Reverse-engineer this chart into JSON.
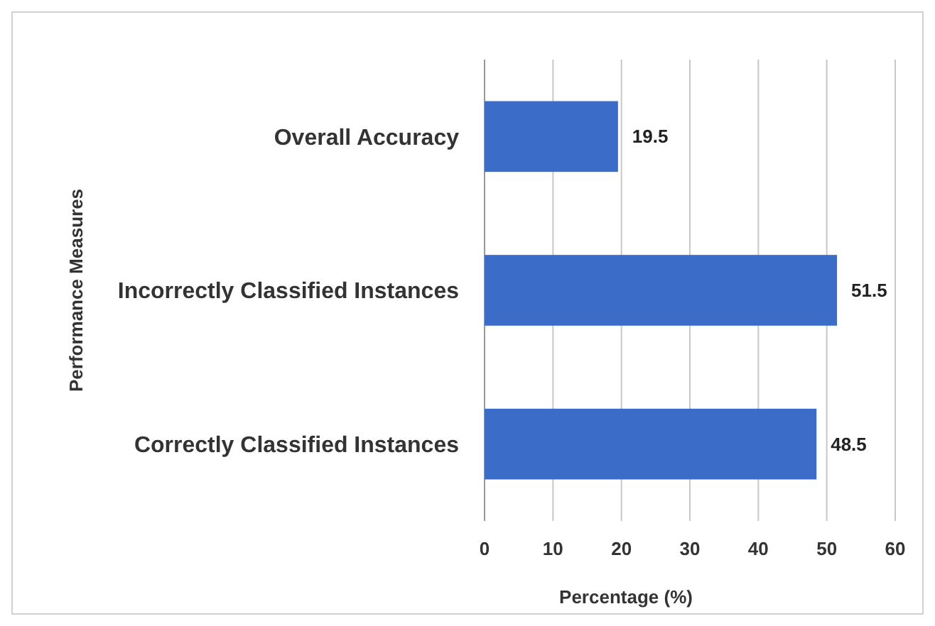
{
  "chart_data": {
    "type": "bar",
    "orientation": "horizontal",
    "xlabel": "Percentage (%)",
    "ylabel": "Performance Measures",
    "categories": [
      "Overall Accuracy",
      "Incorrectly Classified Instances",
      "Correctly Classified Instances"
    ],
    "values": [
      19.5,
      51.5,
      48.5
    ],
    "color": "#3a6cc8",
    "xlim": [
      0,
      60
    ],
    "xticks": [
      0,
      10,
      20,
      30,
      40,
      50,
      60
    ],
    "grid": "x",
    "data_labels": true
  }
}
